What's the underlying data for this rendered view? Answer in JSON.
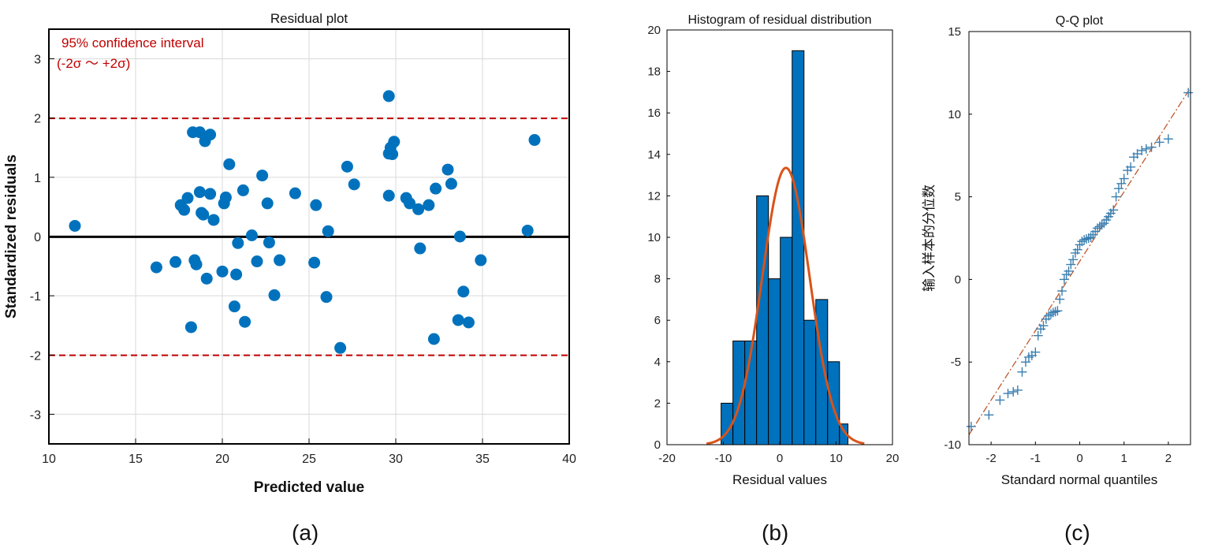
{
  "chart_data": [
    {
      "type": "scatter",
      "panel_label": "(a)",
      "title": "Residual plot",
      "xlabel": "Predicted value",
      "ylabel": "Standardized residuals",
      "xlim": [
        10,
        40
      ],
      "ylim": [
        -3.5,
        3.5
      ],
      "xticks": [
        "10",
        "15",
        "20",
        "25",
        "30",
        "35",
        "40"
      ],
      "yticks": [
        "-3",
        "-2",
        "-1",
        "0",
        "1",
        "2",
        "3"
      ],
      "grid": true,
      "annotation_line1": "95% confidence interval",
      "annotation_line2": "(-2σ ～ +2σ)",
      "reference_lines": {
        "zero": 0,
        "upper": 2,
        "lower": -2
      },
      "colors": {
        "points": "#0072BD",
        "confidence": "#C00000",
        "zero": "#000000"
      },
      "points": [
        [
          11.5,
          0.18
        ],
        [
          16.2,
          -0.52
        ],
        [
          17.3,
          -0.43
        ],
        [
          17.6,
          0.53
        ],
        [
          17.8,
          0.45
        ],
        [
          18.0,
          0.65
        ],
        [
          18.2,
          -1.53
        ],
        [
          18.3,
          1.76
        ],
        [
          18.4,
          -0.4
        ],
        [
          18.5,
          -0.47
        ],
        [
          18.7,
          1.76
        ],
        [
          18.7,
          0.75
        ],
        [
          18.8,
          0.4
        ],
        [
          18.9,
          0.37
        ],
        [
          19.0,
          1.61
        ],
        [
          19.1,
          -0.71
        ],
        [
          19.3,
          1.72
        ],
        [
          19.3,
          0.72
        ],
        [
          19.5,
          0.28
        ],
        [
          20.0,
          -0.59
        ],
        [
          20.1,
          0.56
        ],
        [
          20.2,
          0.66
        ],
        [
          20.4,
          1.22
        ],
        [
          20.7,
          -1.18
        ],
        [
          20.8,
          -0.64
        ],
        [
          20.9,
          -0.11
        ],
        [
          21.2,
          0.78
        ],
        [
          21.3,
          -1.44
        ],
        [
          21.7,
          0.02
        ],
        [
          22.0,
          -0.42
        ],
        [
          22.3,
          1.03
        ],
        [
          22.6,
          0.56
        ],
        [
          22.7,
          -0.1
        ],
        [
          23.0,
          -0.99
        ],
        [
          23.3,
          -0.4
        ],
        [
          24.2,
          0.73
        ],
        [
          25.3,
          -0.44
        ],
        [
          25.4,
          0.53
        ],
        [
          26.0,
          -1.02
        ],
        [
          26.1,
          0.09
        ],
        [
          26.8,
          -1.88
        ],
        [
          27.2,
          1.18
        ],
        [
          27.6,
          0.88
        ],
        [
          29.6,
          2.37
        ],
        [
          29.6,
          1.4
        ],
        [
          29.6,
          0.69
        ],
        [
          29.7,
          1.5
        ],
        [
          29.8,
          1.39
        ],
        [
          29.9,
          1.6
        ],
        [
          30.6,
          0.65
        ],
        [
          30.8,
          0.56
        ],
        [
          31.3,
          0.46
        ],
        [
          31.4,
          -0.2
        ],
        [
          31.9,
          0.53
        ],
        [
          32.2,
          -1.73
        ],
        [
          32.3,
          0.81
        ],
        [
          33.0,
          1.13
        ],
        [
          33.2,
          0.89
        ],
        [
          33.6,
          -1.41
        ],
        [
          33.7,
          0.0
        ],
        [
          33.9,
          -0.93
        ],
        [
          34.2,
          -1.45
        ],
        [
          34.9,
          -0.4
        ],
        [
          37.6,
          0.1
        ],
        [
          38.0,
          1.63
        ]
      ]
    },
    {
      "type": "bar",
      "panel_label": "(b)",
      "title": "Histogram of residual distribution",
      "xlabel": "Residual values",
      "ylabel": "",
      "xlim": [
        -20,
        20
      ],
      "ylim": [
        0,
        20
      ],
      "xticks": [
        "-20",
        "-10",
        "0",
        "10",
        "20"
      ],
      "yticks": [
        "0",
        "2",
        "4",
        "6",
        "8",
        "10",
        "12",
        "14",
        "16",
        "18",
        "20"
      ],
      "grid": false,
      "colors": {
        "bars": "#0072BD",
        "curve": "#D95319"
      },
      "bin_edges": [
        -10.4,
        -8.3,
        -6.2,
        -4.1,
        -2.0,
        0.1,
        2.2,
        4.3,
        6.4,
        8.5,
        10.6,
        12.1
      ],
      "values": [
        2,
        5,
        5,
        12,
        8,
        10,
        19,
        6,
        7,
        4,
        1
      ],
      "fit_curve": {
        "mean": 1.1,
        "std": 4.2,
        "peak": 13.35,
        "x_range": [
          -13,
          15
        ]
      }
    },
    {
      "type": "scatter",
      "panel_label": "(c)",
      "title": "Q-Q plot",
      "xlabel": "Standard normal quantiles",
      "ylabel": "输入样本的分位数",
      "xlim": [
        -2.5,
        2.5
      ],
      "ylim": [
        -10,
        15
      ],
      "xticks": [
        "-2",
        "-1",
        "0",
        "1",
        "2"
      ],
      "yticks": [
        "-10",
        "-5",
        "0",
        "5",
        "10",
        "15"
      ],
      "grid": false,
      "colors": {
        "markers": "#3B7FB0",
        "line": "#C0582B"
      },
      "reference_line": {
        "slope": 4.2,
        "intercept": 1.1
      },
      "points": [
        [
          -2.45,
          -8.9
        ],
        [
          -2.05,
          -8.2
        ],
        [
          -1.8,
          -7.3
        ],
        [
          -1.62,
          -6.9
        ],
        [
          -1.5,
          -6.8
        ],
        [
          -1.4,
          -6.7
        ],
        [
          -1.3,
          -5.6
        ],
        [
          -1.22,
          -5.0
        ],
        [
          -1.15,
          -4.7
        ],
        [
          -1.08,
          -4.6
        ],
        [
          -1.0,
          -4.4
        ],
        [
          -0.94,
          -3.4
        ],
        [
          -0.88,
          -3.0
        ],
        [
          -0.82,
          -2.8
        ],
        [
          -0.76,
          -2.4
        ],
        [
          -0.7,
          -2.2
        ],
        [
          -0.65,
          -2.1
        ],
        [
          -0.6,
          -2.0
        ],
        [
          -0.55,
          -1.95
        ],
        [
          -0.5,
          -1.9
        ],
        [
          -0.45,
          -1.2
        ],
        [
          -0.4,
          -0.7
        ],
        [
          -0.35,
          0.0
        ],
        [
          -0.3,
          0.3
        ],
        [
          -0.25,
          0.5
        ],
        [
          -0.2,
          0.9
        ],
        [
          -0.15,
          1.2
        ],
        [
          -0.1,
          1.6
        ],
        [
          -0.05,
          1.8
        ],
        [
          0.0,
          2.1
        ],
        [
          0.05,
          2.3
        ],
        [
          0.1,
          2.4
        ],
        [
          0.15,
          2.45
        ],
        [
          0.2,
          2.5
        ],
        [
          0.25,
          2.55
        ],
        [
          0.3,
          2.7
        ],
        [
          0.35,
          2.9
        ],
        [
          0.4,
          3.1
        ],
        [
          0.45,
          3.2
        ],
        [
          0.5,
          3.3
        ],
        [
          0.55,
          3.4
        ],
        [
          0.6,
          3.6
        ],
        [
          0.65,
          3.8
        ],
        [
          0.7,
          4.0
        ],
        [
          0.76,
          4.2
        ],
        [
          0.82,
          5.0
        ],
        [
          0.88,
          5.5
        ],
        [
          0.94,
          5.8
        ],
        [
          1.0,
          6.1
        ],
        [
          1.08,
          6.6
        ],
        [
          1.15,
          6.8
        ],
        [
          1.22,
          7.4
        ],
        [
          1.3,
          7.6
        ],
        [
          1.4,
          7.8
        ],
        [
          1.5,
          7.9
        ],
        [
          1.62,
          8.0
        ],
        [
          1.8,
          8.3
        ],
        [
          2.0,
          8.5
        ],
        [
          2.45,
          11.3
        ]
      ]
    }
  ]
}
